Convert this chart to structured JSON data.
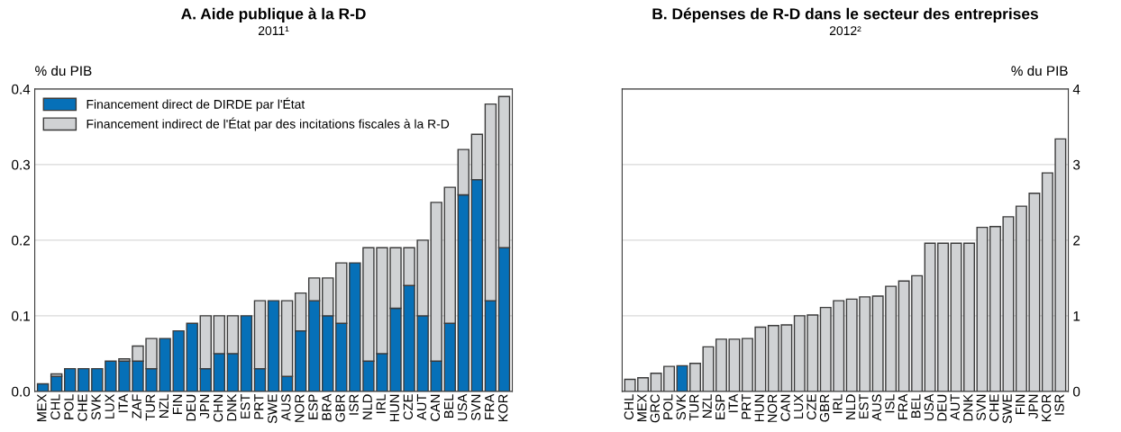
{
  "chart_data": [
    {
      "type": "bar",
      "title": "A. Aide publique à la R-D",
      "subtitle": "2011¹",
      "ylabel": "% du PIB",
      "stacked": true,
      "legend": "top left",
      "grid": "y",
      "categories": [
        "MEX",
        "CHL",
        "POL",
        "CHE",
        "SVK",
        "LUX",
        "ITA",
        "ZAF",
        "TUR",
        "NZL",
        "FIN",
        "DEU",
        "JPN",
        "CHN",
        "DNK",
        "EST",
        "PRT",
        "SWE",
        "AUS",
        "NOR",
        "ESP",
        "BRA",
        "GBR",
        "ISR",
        "NLD",
        "IRL",
        "HUN",
        "CZE",
        "AUT",
        "CAN",
        "BEL",
        "USA",
        "SVN",
        "FRA",
        "KOR"
      ],
      "series": [
        {
          "name": "Financement direct de DIRDE par l'État",
          "color": "#0670b8",
          "values": [
            0.01,
            0.02,
            0.03,
            0.03,
            0.03,
            0.04,
            0.04,
            0.04,
            0.03,
            0.07,
            0.08,
            0.09,
            0.03,
            0.05,
            0.05,
            0.1,
            0.03,
            0.12,
            0.02,
            0.08,
            0.12,
            0.1,
            0.09,
            0.17,
            0.04,
            0.05,
            0.11,
            0.14,
            0.1,
            0.04,
            0.09,
            0.26,
            0.28,
            0.12,
            0.19
          ]
        },
        {
          "name": "Financement indirect de l'État par des incitations fiscales à la R-D",
          "color": "#d0d2d4",
          "values": [
            0,
            0.003,
            0,
            0,
            0,
            0,
            0.003,
            0.02,
            0.04,
            0,
            0,
            0,
            0.07,
            0.05,
            0.05,
            0,
            0.09,
            0,
            0.1,
            0.05,
            0.03,
            0.05,
            0.08,
            0,
            0.15,
            0.14,
            0.08,
            0.05,
            0.1,
            0.21,
            0.18,
            0.06,
            0.06,
            0.26,
            0.2
          ]
        }
      ],
      "ylim": [
        0,
        0.4
      ],
      "yticks": [
        {
          "value": 0,
          "label": "0.0"
        },
        0.1,
        0.2,
        0.3,
        0.4
      ]
    },
    {
      "type": "bar",
      "title": "B. Dépenses de R-D dans le secteur des entreprises",
      "subtitle": "2012²",
      "ylabel": "% du PIB",
      "grid": "y",
      "categories": [
        "CHL",
        "MEX",
        "GRC",
        "POL",
        "SVK",
        "TUR",
        "NZL",
        "ESP",
        "ITA",
        "PRT",
        "HUN",
        "NOR",
        "CAN",
        "LUX",
        "CZE",
        "GBR",
        "IRL",
        "NLD",
        "EST",
        "AUS",
        "ISL",
        "FRA",
        "BEL",
        "USA",
        "DEU",
        "AUT",
        "DNK",
        "SVN",
        "CHE",
        "SWE",
        "FIN",
        "JPN",
        "KOR",
        "ISR"
      ],
      "values": [
        0.16,
        0.18,
        0.24,
        0.33,
        0.34,
        0.37,
        0.59,
        0.69,
        0.69,
        0.7,
        0.85,
        0.87,
        0.88,
        1.0,
        1.01,
        1.11,
        1.2,
        1.22,
        1.25,
        1.26,
        1.39,
        1.46,
        1.53,
        1.96,
        1.96,
        1.96,
        1.96,
        2.17,
        2.18,
        2.31,
        2.45,
        2.62,
        2.89,
        3.34
      ],
      "colors": [
        "#d0d2d4",
        "#d0d2d4",
        "#d0d2d4",
        "#d0d2d4",
        "#0670b8",
        "#d0d2d4",
        "#d0d2d4",
        "#d0d2d4",
        "#d0d2d4",
        "#d0d2d4",
        "#d0d2d4",
        "#d0d2d4",
        "#d0d2d4",
        "#d0d2d4",
        "#d0d2d4",
        "#d0d2d4",
        "#d0d2d4",
        "#d0d2d4",
        "#d0d2d4",
        "#d0d2d4",
        "#d0d2d4",
        "#d0d2d4",
        "#d0d2d4",
        "#d0d2d4",
        "#d0d2d4",
        "#d0d2d4",
        "#d0d2d4",
        "#d0d2d4",
        "#d0d2d4",
        "#d0d2d4",
        "#d0d2d4",
        "#d0d2d4",
        "#d0d2d4",
        "#d0d2d4"
      ],
      "ylim": [
        0,
        4
      ],
      "yticks": [
        0,
        1,
        2,
        3,
        4
      ]
    }
  ]
}
